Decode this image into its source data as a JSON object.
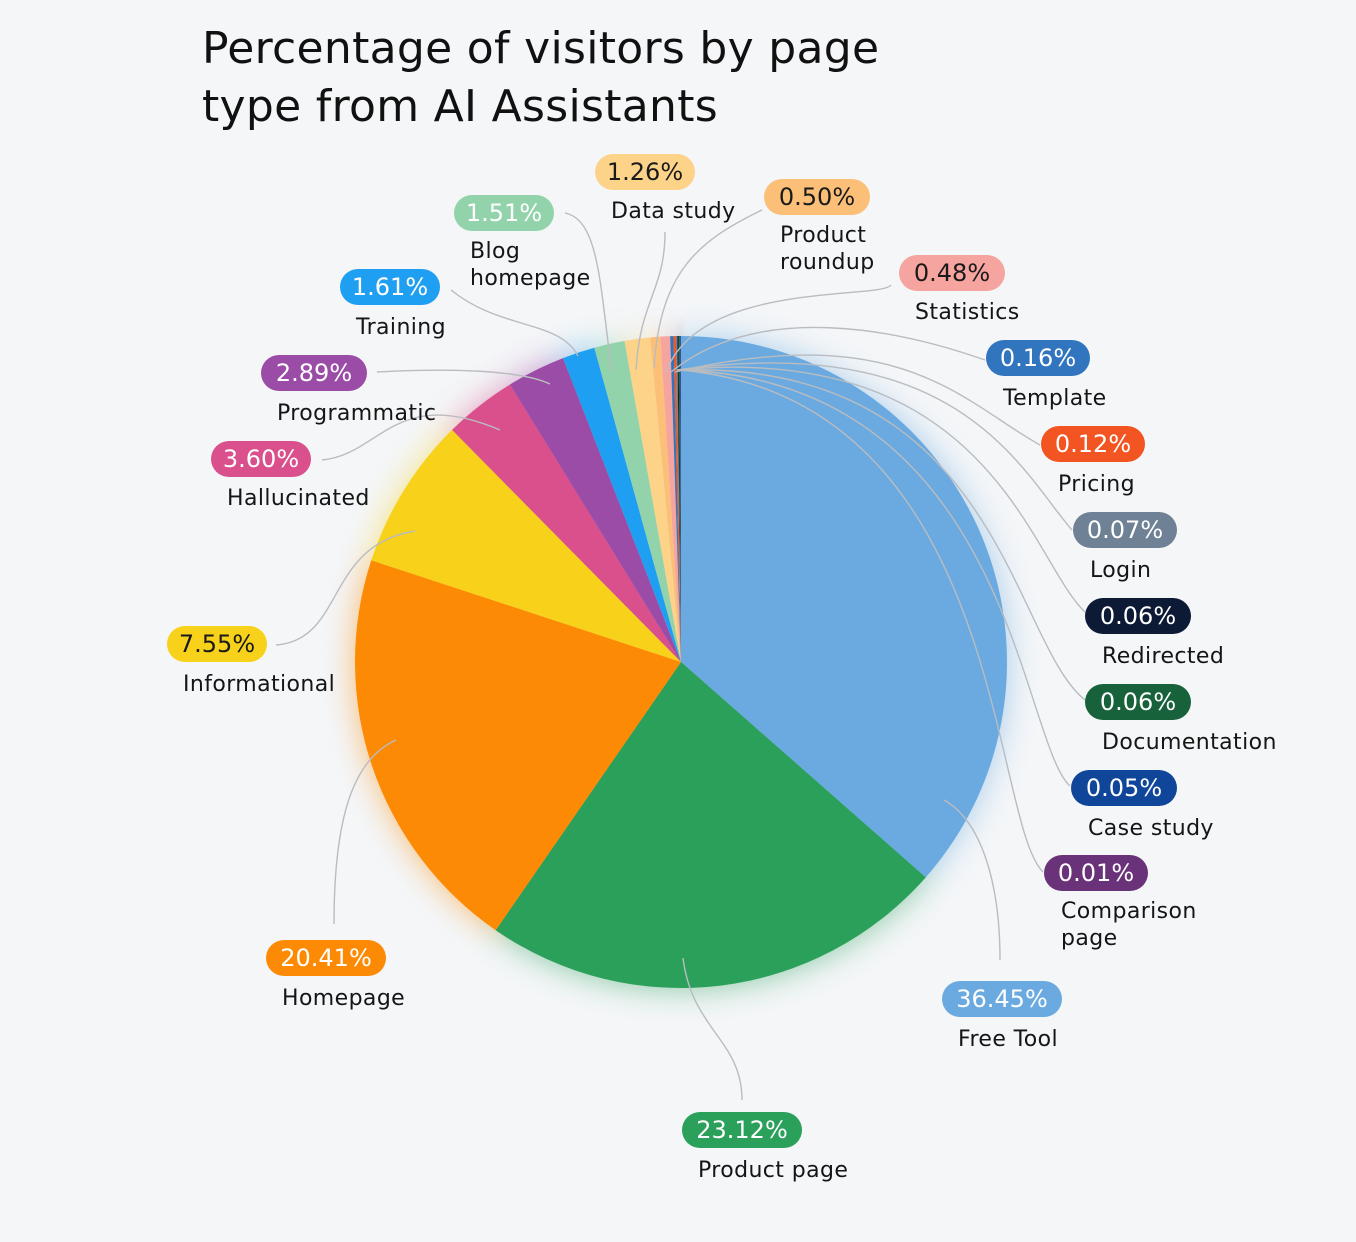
{
  "chart_data": {
    "type": "pie",
    "title": "Percentage of visitors by page type from AI Assistants",
    "unit": "%",
    "slices": [
      {
        "name": "Free Tool",
        "value": 36.45,
        "label": "36.45%",
        "color": "#6aaae0",
        "text_color": "#ffffff"
      },
      {
        "name": "Product page",
        "value": 23.12,
        "label": "23.12%",
        "color": "#2aa05a",
        "text_color": "#ffffff"
      },
      {
        "name": "Homepage",
        "value": 20.41,
        "label": "20.41%",
        "color": "#fd8a04",
        "text_color": "#ffffff"
      },
      {
        "name": "Informational",
        "value": 7.55,
        "label": "7.55%",
        "color": "#f8d11a",
        "text_color": "#1a1a1a"
      },
      {
        "name": "Hallucinated",
        "value": 3.6,
        "label": "3.60%",
        "color": "#d9508c",
        "text_color": "#ffffff"
      },
      {
        "name": "Programmatic",
        "value": 2.89,
        "label": "2.89%",
        "color": "#9b4ca6",
        "text_color": "#ffffff"
      },
      {
        "name": "Training",
        "value": 1.61,
        "label": "1.61%",
        "color": "#1e9ff2",
        "text_color": "#ffffff"
      },
      {
        "name": "Blog homepage",
        "value": 1.51,
        "label": "1.51%",
        "color": "#92d3ab",
        "text_color": "#ffffff"
      },
      {
        "name": "Data study",
        "value": 1.26,
        "label": "1.26%",
        "color": "#fdd38a",
        "text_color": "#1a1a1a"
      },
      {
        "name": "Product roundup",
        "value": 0.5,
        "label": "0.50%",
        "color": "#fbbf78",
        "text_color": "#1a1a1a"
      },
      {
        "name": "Statistics",
        "value": 0.48,
        "label": "0.48%",
        "color": "#f6a4a0",
        "text_color": "#1a1a1a"
      },
      {
        "name": "Template",
        "value": 0.16,
        "label": "0.16%",
        "color": "#3075be",
        "text_color": "#ffffff"
      },
      {
        "name": "Pricing",
        "value": 0.12,
        "label": "0.12%",
        "color": "#f25522",
        "text_color": "#ffffff"
      },
      {
        "name": "Login",
        "value": 0.07,
        "label": "0.07%",
        "color": "#6f8194",
        "text_color": "#ffffff"
      },
      {
        "name": "Redirected",
        "value": 0.06,
        "label": "0.06%",
        "color": "#0d1a35",
        "text_color": "#ffffff"
      },
      {
        "name": "Documentation",
        "value": 0.06,
        "label": "0.06%",
        "color": "#17623a",
        "text_color": "#ffffff"
      },
      {
        "name": "Case study",
        "value": 0.05,
        "label": "0.05%",
        "color": "#0f469a",
        "text_color": "#ffffff"
      },
      {
        "name": "Comparison page",
        "value": 0.01,
        "label": "0.01%",
        "color": "#6a3279",
        "text_color": "#ffffff"
      }
    ]
  }
}
